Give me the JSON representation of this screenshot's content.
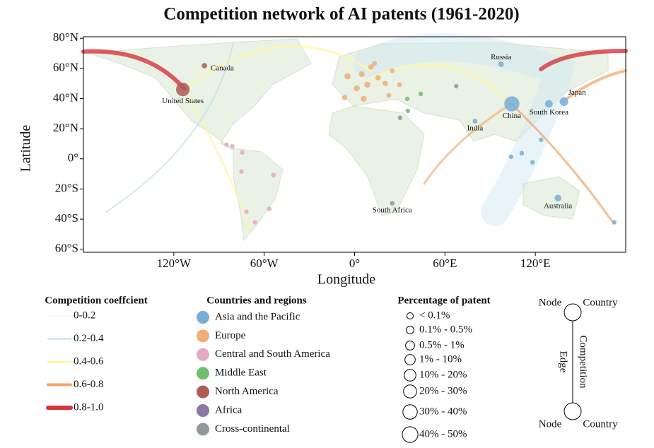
{
  "chart_data": {
    "type": "map",
    "title": "Competition network of AI patents (1961-2020)",
    "x_label": "Longitude",
    "y_label": "Latitude",
    "xlim": [
      -180,
      180
    ],
    "ylim": [
      -62,
      81
    ],
    "xticks": [
      {
        "value": -120,
        "label": "120°W"
      },
      {
        "value": -60,
        "label": "60°W"
      },
      {
        "value": 0,
        "label": "0°"
      },
      {
        "value": 60,
        "label": "60°E"
      },
      {
        "value": 120,
        "label": "120°E"
      }
    ],
    "yticks": [
      {
        "value": 80,
        "label": "80°N"
      },
      {
        "value": 60,
        "label": "60°N"
      },
      {
        "value": 40,
        "label": "40°N"
      },
      {
        "value": 20,
        "label": "20°N"
      },
      {
        "value": 0,
        "label": "0°"
      },
      {
        "value": -20,
        "label": "20°S"
      },
      {
        "value": -40,
        "label": "40°S"
      },
      {
        "value": -60,
        "label": "60°S"
      }
    ],
    "series_legend_title": "Countries and regions",
    "series": [
      {
        "name": "Asia and the Pacific",
        "color": "#78aed6",
        "x": [
          97.3,
          104.4,
          129,
          139,
          80,
          135,
          103.9,
          111,
          118.1,
          123.8,
          172.4
        ],
        "y": [
          62.7,
          36.5,
          36.5,
          38,
          25,
          -26,
          1.4,
          3.7,
          -2.3,
          12.6,
          -42.1
        ],
        "sizes": [
          1,
          40,
          5,
          8,
          0.5,
          3,
          0.3,
          0.3,
          0.3,
          0.3,
          0.3
        ],
        "labels": [
          "Russia",
          "China",
          "South Korea",
          "Japan",
          "India",
          "Australia",
          null,
          null,
          null,
          null,
          null
        ]
      },
      {
        "name": "Europe",
        "color": "#f0ad74",
        "x": [
          -4.7,
          4.7,
          10.9,
          15.6,
          20.3,
          25,
          1.4,
          8.5,
          -6.6,
          6.1,
          22.7,
          29.8,
          13.2
        ],
        "y": [
          54.8,
          56.2,
          60.9,
          53.8,
          50.1,
          58.5,
          46.8,
          49.2,
          40.7,
          39.8,
          42.1,
          49.2,
          63.2
        ],
        "sizes": [
          2,
          1.5,
          1,
          1,
          1,
          0.5,
          2,
          2,
          1,
          1.5,
          0.5,
          0.5,
          0.5
        ],
        "labels": [
          null,
          null,
          null,
          null,
          null,
          null,
          null,
          null,
          null,
          null,
          null,
          null,
          null
        ]
      },
      {
        "name": "Central and South America",
        "color": "#e6a9bf",
        "x": [
          -85,
          -81.2,
          -74.6,
          -75.1,
          -53.8,
          -56.7,
          -71.8,
          -66.1
        ],
        "y": [
          9.4,
          8.4,
          4.2,
          -8.4,
          -10.8,
          -33.2,
          -35.1,
          -42.1
        ],
        "sizes": [
          0.3,
          0.3,
          0.3,
          0.3,
          0.5,
          0.3,
          0.3,
          0.3
        ],
        "labels": [
          null,
          null,
          null,
          null,
          null,
          null,
          null,
          null
        ]
      },
      {
        "name": "Middle East",
        "color": "#74bd70",
        "x": [
          35,
          43.9,
          35.4
        ],
        "y": [
          39.8,
          43.1,
          31.8
        ],
        "sizes": [
          0.3,
          0.3,
          0.3
        ],
        "labels": [
          null,
          null,
          null
        ]
      },
      {
        "name": "North America",
        "color": "#ad5b57",
        "x": [
          -114,
          -99.7
        ],
        "y": [
          46,
          61.8
        ],
        "sizes": [
          30,
          1
        ],
        "labels": [
          "United States",
          "Canada"
        ]
      },
      {
        "name": "Africa",
        "color": "#8b76a6",
        "x": [],
        "y": [],
        "sizes": [],
        "labels": []
      },
      {
        "name": "Cross-continental",
        "color": "#8e999b",
        "x": [
          25,
          30.2,
          67.5
        ],
        "y": [
          -29.5,
          27.2,
          48.2
        ],
        "sizes": [
          0.3,
          0.3,
          0.3
        ],
        "labels": [
          "South Africa",
          null,
          null
        ]
      }
    ],
    "edge_legend_title": "Competition coeffcient",
    "edge_legend": [
      {
        "label": "0-0.2",
        "color": "#e6f1f8"
      },
      {
        "label": "0.2-0.4",
        "color": "#bfe0ec"
      },
      {
        "label": "0.4-0.6",
        "color": "#fdf6a6"
      },
      {
        "label": "0.6-0.8",
        "color": "#f3a263"
      },
      {
        "label": "0.8-1.0",
        "color": "#d6343d"
      }
    ],
    "size_legend_title": "Percentage of patent",
    "size_legend": [
      "< 0.1%",
      "0.1% - 0.5%",
      "0.5% - 1%",
      "1% - 10%",
      "10% - 20%",
      "20% - 30%",
      "30% - 40%",
      "40% - 50%"
    ],
    "diagram": {
      "top_left": "Node",
      "top_right": "Country",
      "edge_left": "Edge",
      "edge_right": "Competition",
      "bottom_left": "Node",
      "bottom_right": "Country"
    }
  }
}
